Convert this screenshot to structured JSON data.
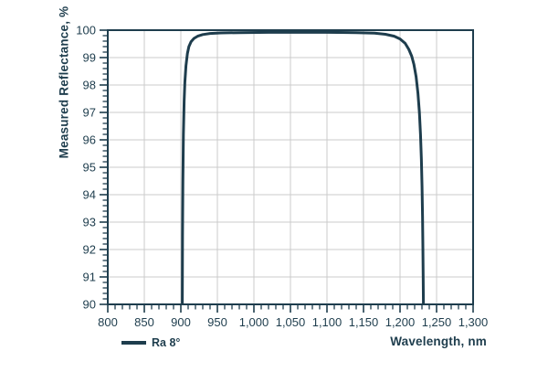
{
  "colors": {
    "accent": "#1e3d4d",
    "grid": "#cbcbcb",
    "background": "#ffffff"
  },
  "legend": {
    "items": [
      {
        "label": "Ra 8°",
        "color": "#1e3d4d"
      }
    ]
  },
  "chart_data": {
    "type": "line",
    "title": "",
    "xlabel": "Wavelength, nm",
    "ylabel": "Measured Reflectance, %",
    "xlim": [
      800,
      1300
    ],
    "ylim": [
      90,
      100
    ],
    "x_major_step": 50,
    "x_minor_step": 10,
    "y_major_step": 1,
    "y_minor_step": 0.2,
    "grid": true,
    "frame": true,
    "legend_position": "bottom-left",
    "x_tick_labels": [
      "800",
      "850",
      "900",
      "950",
      "1,000",
      "1,050",
      "1,100",
      "1,150",
      "1,200",
      "1,250",
      "1,300"
    ],
    "y_tick_labels": [
      "90",
      "91",
      "92",
      "93",
      "94",
      "95",
      "96",
      "97",
      "98",
      "99",
      "100"
    ],
    "series": [
      {
        "name": "Ra 8°",
        "color": "#1e3d4d",
        "points": [
          [
            902,
            90
          ],
          [
            902.3,
            92.5
          ],
          [
            902.8,
            94.5
          ],
          [
            903.5,
            96.2
          ],
          [
            904.5,
            97.4
          ],
          [
            905.5,
            98.1
          ],
          [
            907,
            98.7
          ],
          [
            909,
            99.15
          ],
          [
            911,
            99.4
          ],
          [
            914,
            99.58
          ],
          [
            918,
            99.7
          ],
          [
            923,
            99.78
          ],
          [
            930,
            99.84
          ],
          [
            940,
            99.88
          ],
          [
            955,
            99.9
          ],
          [
            980,
            99.91
          ],
          [
            1020,
            99.92
          ],
          [
            1060,
            99.92
          ],
          [
            1100,
            99.92
          ],
          [
            1140,
            99.91
          ],
          [
            1165,
            99.89
          ],
          [
            1180,
            99.85
          ],
          [
            1192,
            99.78
          ],
          [
            1200,
            99.68
          ],
          [
            1207,
            99.52
          ],
          [
            1212,
            99.3
          ],
          [
            1216,
            99.05
          ],
          [
            1219,
            98.75
          ],
          [
            1222,
            98.3
          ],
          [
            1224.5,
            97.7
          ],
          [
            1226.5,
            97.0
          ],
          [
            1228,
            96.2
          ],
          [
            1229.2,
            95.3
          ],
          [
            1230.1,
            94.3
          ],
          [
            1230.8,
            93.2
          ],
          [
            1231.3,
            92.0
          ],
          [
            1231.7,
            90.9
          ],
          [
            1232,
            90
          ]
        ]
      }
    ]
  }
}
